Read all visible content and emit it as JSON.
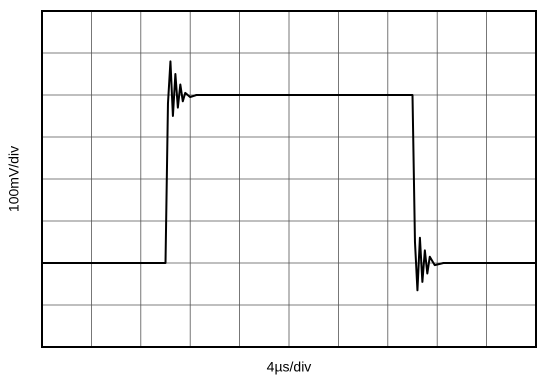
{
  "chart_data": {
    "type": "line",
    "x_label": "4µs/div",
    "y_label": "100mV/div",
    "x": [
      0,
      10.0,
      10.2,
      10.4,
      10.6,
      10.8,
      11.0,
      11.2,
      11.4,
      11.6,
      12.0,
      12.5,
      13.0,
      30.0,
      30.2,
      30.4,
      30.6,
      30.8,
      31.0,
      31.2,
      31.4,
      31.8,
      32.5,
      40
    ],
    "series": [
      {
        "color": "#000000",
        "values": [
          -200,
          -200,
          180,
          280,
          150,
          250,
          170,
          225,
          185,
          205,
          195,
          200,
          200,
          200,
          -150,
          -265,
          -140,
          -245,
          -170,
          -225,
          -185,
          -205,
          -200,
          -200
        ]
      }
    ],
    "xlim": [
      0,
      40
    ],
    "xticks": [
      0,
      4,
      8,
      12,
      16,
      20,
      24,
      28,
      32,
      36,
      40
    ],
    "ylim": [
      -400,
      400
    ],
    "yticks": [
      -400,
      -300,
      -200,
      -100,
      0,
      100,
      200,
      300,
      400
    ],
    "grid": true
  }
}
